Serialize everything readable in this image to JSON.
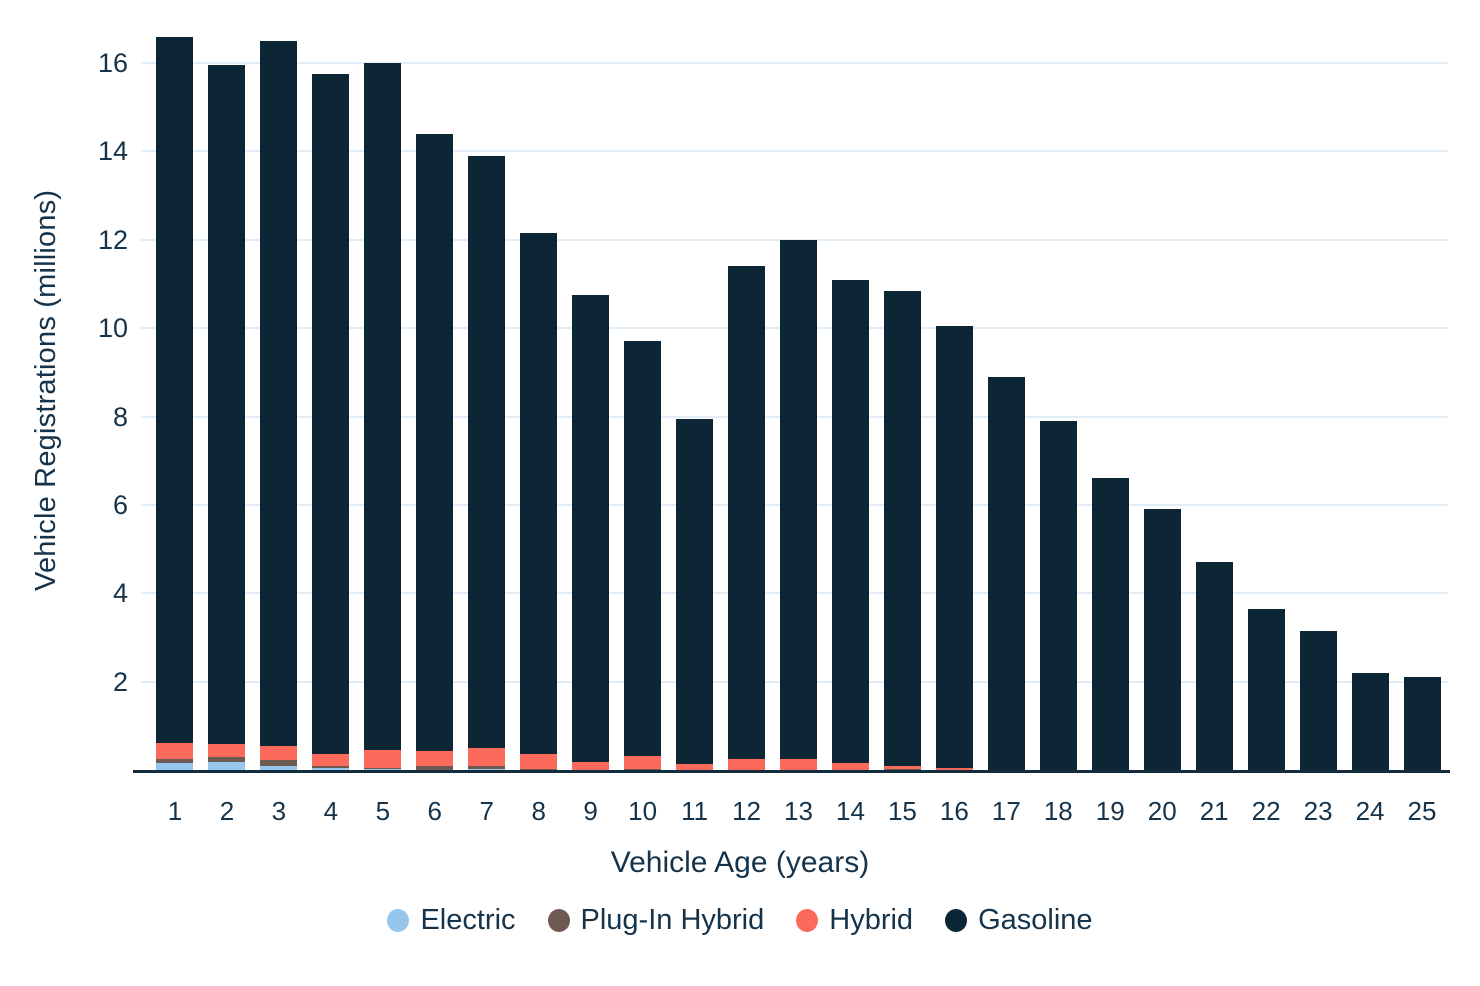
{
  "chart_data": {
    "type": "bar",
    "stacked": true,
    "title": "",
    "xlabel": "Vehicle Age (years)",
    "ylabel": "Vehicle Registrations (millions)",
    "categories": [
      "1",
      "2",
      "3",
      "4",
      "5",
      "6",
      "7",
      "8",
      "9",
      "10",
      "11",
      "12",
      "13",
      "14",
      "15",
      "16",
      "17",
      "18",
      "19",
      "20",
      "21",
      "22",
      "23",
      "24",
      "25"
    ],
    "series": [
      {
        "name": "Electric",
        "color": "#94C6EE",
        "values": [
          0.15,
          0.19,
          0.1,
          0.04,
          0.03,
          0.01,
          0.02,
          0.01,
          0,
          0,
          0,
          0,
          0,
          0,
          0,
          0,
          0,
          0,
          0,
          0,
          0,
          0,
          0,
          0,
          0
        ]
      },
      {
        "name": "Plug-In Hybrid",
        "color": "#6D5A50",
        "values": [
          0.09,
          0.1,
          0.13,
          0.05,
          0.02,
          0.07,
          0.06,
          0.02,
          0.01,
          0.02,
          0.01,
          0.01,
          0.01,
          0.01,
          0.02,
          0.01,
          0,
          0,
          0,
          0,
          0,
          0,
          0,
          0,
          0
        ]
      },
      {
        "name": "Hybrid",
        "color": "#FB6A5B",
        "values": [
          0.37,
          0.29,
          0.32,
          0.27,
          0.4,
          0.34,
          0.41,
          0.33,
          0.18,
          0.3,
          0.12,
          0.25,
          0.23,
          0.14,
          0.07,
          0.03,
          0,
          0,
          0,
          0,
          0,
          0,
          0,
          0,
          0
        ]
      },
      {
        "name": "Gasoline",
        "color": "#0D2636",
        "values": [
          15.99,
          15.37,
          15.95,
          15.39,
          15.55,
          13.98,
          13.41,
          11.79,
          10.57,
          9.38,
          7.82,
          11.14,
          11.76,
          10.95,
          10.76,
          10.01,
          8.9,
          7.9,
          6.6,
          5.9,
          4.7,
          3.65,
          3.15,
          2.2,
          2.1
        ]
      }
    ],
    "totals": [
      16.6,
      15.95,
      16.5,
      15.75,
      16.0,
      14.4,
      13.9,
      12.15,
      10.75,
      9.7,
      7.95,
      11.4,
      12.0,
      11.1,
      10.85,
      10.05,
      8.9,
      7.9,
      6.6,
      5.9,
      4.7,
      3.65,
      3.15,
      2.2,
      2.1
    ],
    "ylim": [
      0,
      17.2
    ],
    "yticks": [
      2,
      4,
      6,
      8,
      10,
      12,
      14,
      16
    ],
    "grid": true,
    "legend_position": "bottom"
  },
  "colors": {
    "background": "#FFFFFF",
    "gridline": "#E2EDF8",
    "axis_line": "#132C3E",
    "text": "#15334B"
  }
}
